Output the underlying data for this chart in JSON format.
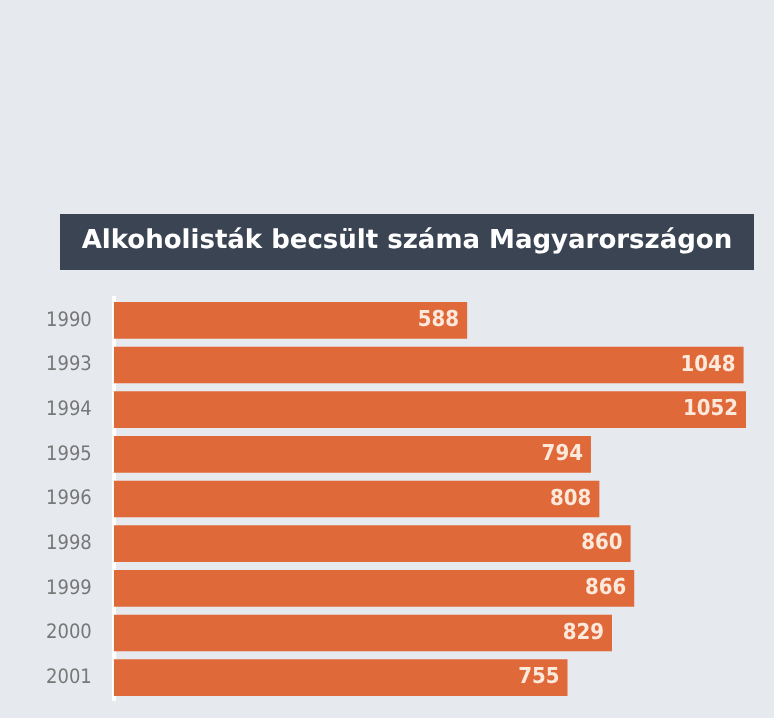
{
  "chart_data": {
    "type": "bar",
    "orientation": "horizontal",
    "title": "Alkoholisták becsült száma Magyarországon",
    "categories": [
      "1990",
      "1993",
      "1994",
      "1995",
      "1996",
      "1998",
      "1999",
      "2000",
      "2001"
    ],
    "values": [
      588,
      1048,
      1052,
      794,
      808,
      860,
      866,
      829,
      755
    ],
    "color": "#e0693a",
    "data_labels": true,
    "grid": false,
    "legend": false
  }
}
